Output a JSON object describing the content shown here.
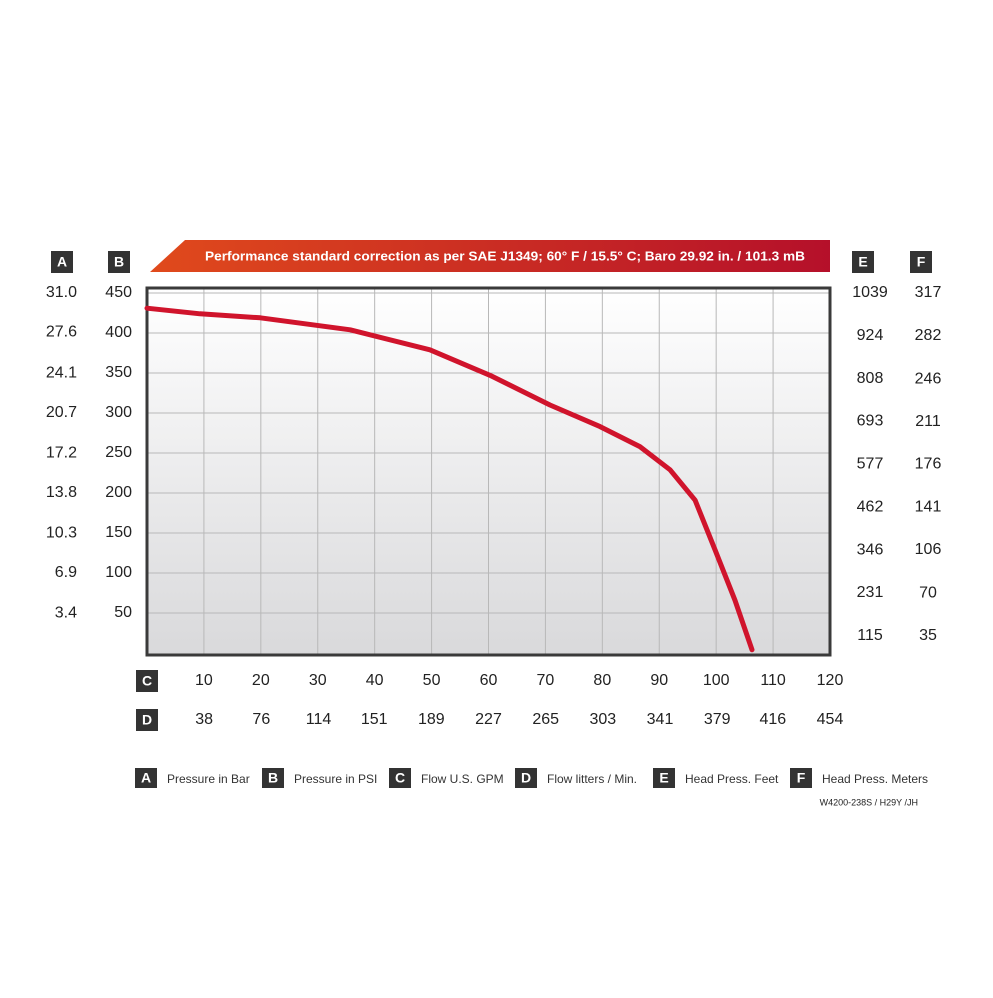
{
  "chart_data": {
    "type": "line",
    "title": "Performance standard correction as per SAE J1349;  60° F / 15.5° C;  Baro 29.92 in. / 101.3 mB",
    "footnote": "W4200-238S / H29Y /JH",
    "x": [
      0,
      9.3,
      19.9,
      35.7,
      49.7,
      60.3,
      70.8,
      79.6,
      86.6,
      91.9,
      96.3,
      99.8,
      103.3,
      106.3
    ],
    "series": [
      {
        "color": "#d0142c",
        "values": [
          431,
          424,
          419,
          404,
          379,
          347,
          310,
          283,
          258,
          229,
          191,
          129,
          66,
          4
        ]
      }
    ],
    "axes": [
      {
        "letter": "A",
        "label": "Pressure in Bar",
        "position": "left",
        "lim": [
          0,
          31.0
        ],
        "ticks": [
          {
            "value": 31,
            "label": "31.0"
          },
          27.6,
          24.1,
          20.7,
          17.2,
          13.8,
          10.3,
          6.9,
          3.4
        ]
      },
      {
        "letter": "B",
        "label": "Pressure in PSI",
        "position": "left",
        "lim": [
          0,
          450
        ],
        "ticks": [
          450,
          400,
          350,
          300,
          250,
          200,
          150,
          100,
          50
        ]
      },
      {
        "letter": "C",
        "label": "Flow U.S. GPM",
        "position": "bottom",
        "lim": [
          0,
          120
        ],
        "ticks": [
          10,
          20,
          30,
          40,
          50,
          60,
          70,
          80,
          90,
          100,
          110,
          120
        ]
      },
      {
        "letter": "D",
        "label": "Flow litters / Min.",
        "position": "bottom",
        "lim": [
          0,
          454
        ],
        "ticks": [
          38,
          76,
          114,
          151,
          189,
          227,
          265,
          303,
          341,
          379,
          416,
          454
        ]
      },
      {
        "letter": "E",
        "label": "Head Press. Feet",
        "position": "right",
        "lim": [
          69,
          1039
        ],
        "ticks": [
          1039,
          924,
          808,
          693,
          577,
          462,
          346,
          231,
          115
        ]
      },
      {
        "letter": "F",
        "label": "Head Press. Meters",
        "position": "right",
        "lim": [
          21,
          317
        ],
        "ticks": [
          317,
          282,
          246,
          211,
          176,
          141,
          106,
          70,
          35
        ]
      }
    ],
    "grid": true
  }
}
